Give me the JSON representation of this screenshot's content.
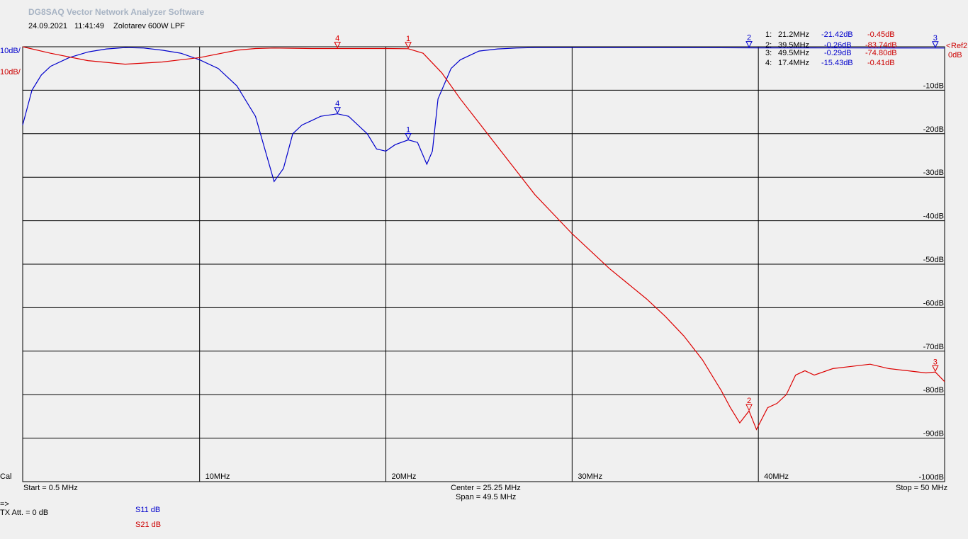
{
  "header": {
    "title": "DG8SAQ Vector Network Analyzer Software",
    "date": "24.09.2021",
    "time": "11:41:49",
    "description": "Zolotarev 600W LPF"
  },
  "markers_table": [
    {
      "label": "1:",
      "freq": "21.2MHz",
      "s11": "-21.42dB",
      "s21": "-0.45dB"
    },
    {
      "label": "2:",
      "freq": "39.5MHz",
      "s11": "-0.26dB",
      "s21": "-83.74dB"
    },
    {
      "label": "3:",
      "freq": "49.5MHz",
      "s11": "-0.29dB",
      "s21": "-74.80dB"
    },
    {
      "label": "4:",
      "freq": "17.4MHz",
      "s11": "-15.43dB",
      "s21": "-0.41dB"
    }
  ],
  "scale": {
    "blue_div": "10dB/",
    "red_div": "10dB/",
    "ref_label": "Ref",
    "ref_value": "0dB",
    "ref_arrow": "<",
    "ref_channel": "2"
  },
  "footer": {
    "cal": "Cal",
    "start": "Start = 0.5 MHz",
    "center": "Center = 25.25 MHz",
    "span": "Span = 49.5 MHz",
    "stop": "Stop = 50 MHz",
    "arrow": "=>",
    "tx_att": "TX Att.  = 0 dB",
    "legend_s11": "S11  dB",
    "legend_s21": "S21  dB"
  },
  "colors": {
    "s11": "#0000cc",
    "s21": "#dd0000",
    "grid": "#000000",
    "background": "#f0f0f0"
  },
  "chart_data": {
    "type": "line",
    "xlim": [
      0.5,
      50
    ],
    "ylim": [
      -100,
      0
    ],
    "grid": true,
    "x_ticks": [
      {
        "x": 10,
        "label": "10MHz"
      },
      {
        "x": 20,
        "label": "20MHz"
      },
      {
        "x": 30,
        "label": "30MHz"
      },
      {
        "x": 40,
        "label": "40MHz"
      }
    ],
    "y_ticks": [
      {
        "y": -10,
        "label": "-10dB"
      },
      {
        "y": -20,
        "label": "-20dB"
      },
      {
        "y": -30,
        "label": "-30dB"
      },
      {
        "y": -40,
        "label": "-40dB"
      },
      {
        "y": -50,
        "label": "-50dB"
      },
      {
        "y": -60,
        "label": "-60dB"
      },
      {
        "y": -70,
        "label": "-70dB"
      },
      {
        "y": -80,
        "label": "-80dB"
      },
      {
        "y": -90,
        "label": "-90dB"
      },
      {
        "y": -100,
        "label": "-100dB"
      }
    ],
    "series": [
      {
        "name": "S11",
        "color": "#0000cc",
        "x": [
          0.5,
          1,
          1.5,
          2,
          3,
          4,
          5,
          6,
          7,
          8,
          9,
          10,
          11,
          12,
          13,
          14,
          14.5,
          15,
          15.5,
          16,
          16.5,
          17.4,
          18,
          19,
          19.5,
          20,
          20.5,
          21.2,
          21.7,
          22.2,
          22.5,
          22.8,
          23.5,
          24,
          25,
          26,
          27,
          28,
          30,
          35,
          40,
          45,
          50
        ],
        "y": [
          -18,
          -10,
          -6.5,
          -4.5,
          -2.5,
          -1.2,
          -0.5,
          -0.2,
          -0.3,
          -0.8,
          -1.5,
          -3,
          -5,
          -9,
          -16,
          -31,
          -28,
          -20,
          -18,
          -17,
          -16,
          -15.43,
          -16,
          -20,
          -23.5,
          -24,
          -22.5,
          -21.42,
          -22,
          -27,
          -24,
          -12,
          -5,
          -3,
          -1,
          -0.5,
          -0.3,
          -0.2,
          -0.2,
          -0.2,
          -0.26,
          -0.28,
          -0.29
        ]
      },
      {
        "name": "S21",
        "color": "#dd0000",
        "x": [
          0.5,
          2,
          4,
          6,
          8,
          10,
          12,
          13,
          14,
          15,
          16,
          17.4,
          18,
          20,
          21.2,
          22,
          23,
          24,
          25,
          26,
          27,
          28,
          30,
          32,
          34,
          35,
          36,
          37,
          38,
          38.5,
          39,
          39.5,
          39.9,
          40.5,
          41,
          41.5,
          42,
          42.5,
          43,
          44,
          45,
          46,
          47,
          48,
          49,
          49.5,
          50
        ],
        "y": [
          0,
          -1.5,
          -3.2,
          -4,
          -3.5,
          -2.5,
          -0.8,
          -0.4,
          -0.3,
          -0.35,
          -0.4,
          -0.41,
          -0.4,
          -0.4,
          -0.45,
          -1.5,
          -6,
          -12,
          -17.5,
          -23,
          -28.5,
          -34,
          -43,
          -51,
          -58,
          -62,
          -66.5,
          -72,
          -79,
          -83,
          -86.5,
          -83.74,
          -88,
          -83,
          -82,
          -80,
          -75.5,
          -74.5,
          -75.5,
          -74,
          -73.5,
          -73,
          -74,
          -74.5,
          -75,
          -74.8,
          -77
        ]
      }
    ],
    "markers": [
      {
        "n": "1",
        "x": 21.2,
        "s11": -21.42,
        "s21": -0.45
      },
      {
        "n": "2",
        "x": 39.5,
        "s11": -0.26,
        "s21": -83.74
      },
      {
        "n": "3",
        "x": 49.5,
        "s11": -0.29,
        "s21": -74.8
      },
      {
        "n": "4",
        "x": 17.4,
        "s11": -15.43,
        "s21": -0.41
      }
    ]
  }
}
